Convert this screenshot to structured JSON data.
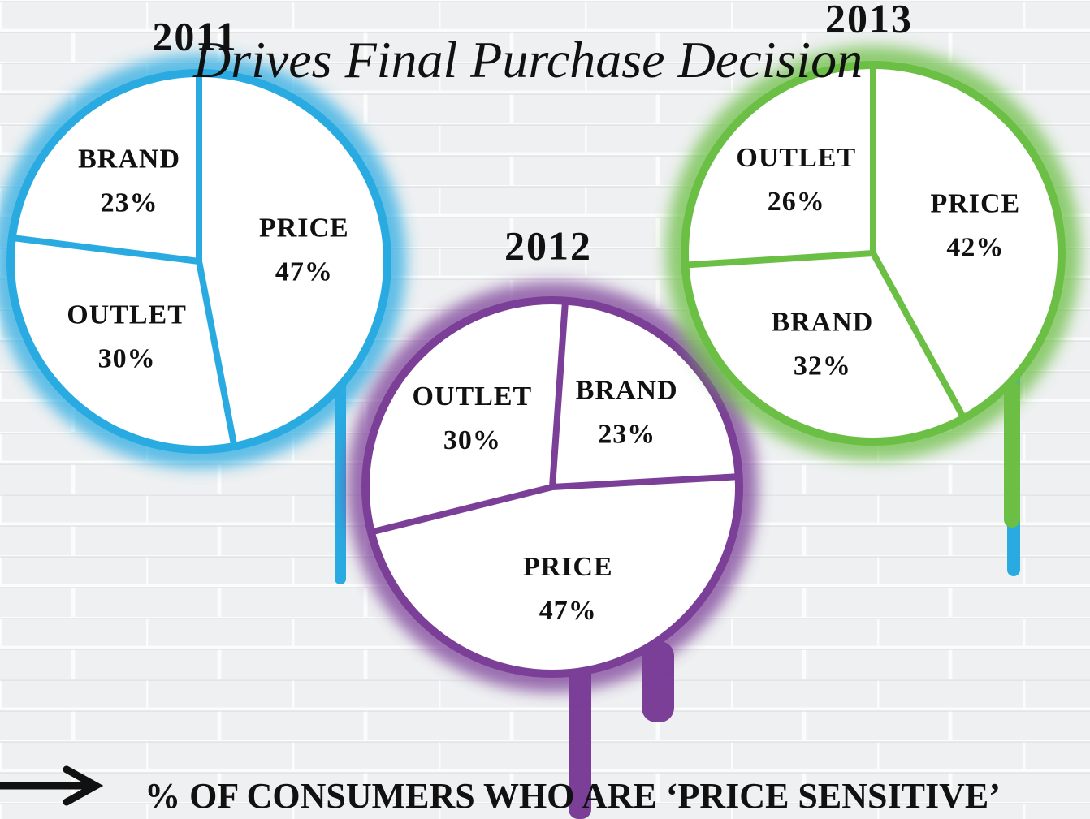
{
  "title": "Drives Final Purchase Decision",
  "footer": "% OF CONSUMERS WHO ARE ‘PRICE SENSITIVE’",
  "chart_data": [
    {
      "type": "pie",
      "title": "2011",
      "categories": [
        "PRICE",
        "OUTLET",
        "BRAND"
      ],
      "values": [
        47,
        30,
        23
      ],
      "value_labels": [
        "47%",
        "30%",
        "23%"
      ],
      "color": "#29abe2"
    },
    {
      "type": "pie",
      "title": "2012",
      "categories": [
        "BRAND",
        "PRICE",
        "OUTLET"
      ],
      "values": [
        23,
        47,
        30
      ],
      "value_labels": [
        "23%",
        "47%",
        "30%"
      ],
      "color": "#7b3f98"
    },
    {
      "type": "pie",
      "title": "2013",
      "categories": [
        "PRICE",
        "BRAND",
        "OUTLET"
      ],
      "values": [
        42,
        32,
        26
      ],
      "value_labels": [
        "42%",
        "32%",
        "26%"
      ],
      "color": "#6cbf45"
    }
  ]
}
